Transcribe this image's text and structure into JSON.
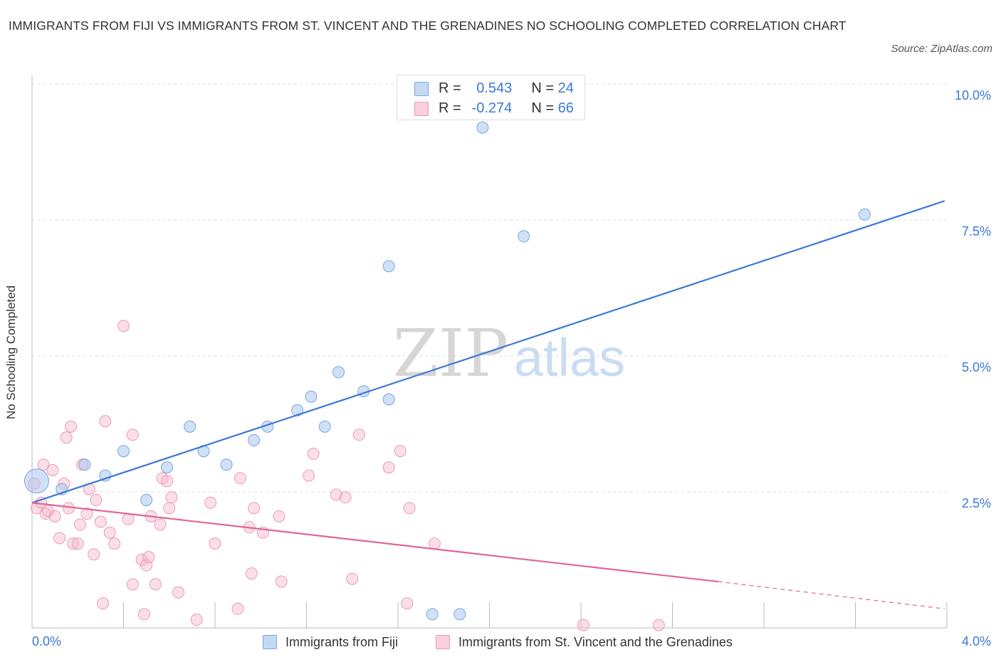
{
  "title": "IMMIGRANTS FROM FIJI VS IMMIGRANTS FROM ST. VINCENT AND THE GRENADINES NO SCHOOLING COMPLETED CORRELATION CHART",
  "source": "Source: ZipAtlas.com",
  "watermark": {
    "zip": "ZIP",
    "atlas": "atlas"
  },
  "legend_top": {
    "rows": [
      {
        "r_label": "R =",
        "r_value": "0.543",
        "n_label": "N =",
        "n_value": "24",
        "color": "#aac7f0"
      },
      {
        "r_label": "R =",
        "r_value": "-0.274",
        "n_label": "N =",
        "n_value": "66",
        "color": "#f5b7cb"
      }
    ]
  },
  "legend_bottom": [
    {
      "label": "Immigrants from Fiji",
      "color": "#aac7f0"
    },
    {
      "label": "Immigrants from St. Vincent and the Grenadines",
      "color": "#f5b7cb"
    }
  ],
  "chart_data": {
    "type": "scatter",
    "title": "IMMIGRANTS FROM FIJI VS IMMIGRANTS FROM ST. VINCENT AND THE GRENADINES NO SCHOOLING COMPLETED CORRELATION CHART",
    "xlabel": "",
    "ylabel": "No Schooling Completed",
    "xlim": [
      0,
      4.0
    ],
    "ylim": [
      0,
      10.0
    ],
    "x_tick_labels": [
      "0.0%",
      "4.0%"
    ],
    "y_ticks": [
      2.5,
      5.0,
      7.5,
      10.0
    ],
    "y_tick_labels": [
      "2.5%",
      "5.0%",
      "7.5%",
      "10.0%"
    ],
    "grid": true,
    "legend_position": "bottom",
    "series": [
      {
        "name": "Immigrants from Fiji",
        "color": "#3c78d8",
        "fill": "#aac7f0",
        "points": [
          [
            0.02,
            2.7
          ],
          [
            0.13,
            2.55
          ],
          [
            0.23,
            3.0
          ],
          [
            0.32,
            2.8
          ],
          [
            0.4,
            3.25
          ],
          [
            0.5,
            2.35
          ],
          [
            0.59,
            2.95
          ],
          [
            0.69,
            3.7
          ],
          [
            0.75,
            3.25
          ],
          [
            0.85,
            3.0
          ],
          [
            0.97,
            3.45
          ],
          [
            1.03,
            3.7
          ],
          [
            1.16,
            4.0
          ],
          [
            1.22,
            4.25
          ],
          [
            1.28,
            3.7
          ],
          [
            1.34,
            4.7
          ],
          [
            1.45,
            4.35
          ],
          [
            1.56,
            4.2
          ],
          [
            1.56,
            6.65
          ],
          [
            1.75,
            0.25
          ],
          [
            1.87,
            0.25
          ],
          [
            1.97,
            9.2
          ],
          [
            2.15,
            7.2
          ],
          [
            3.64,
            7.6
          ]
        ],
        "trendline": {
          "x": [
            0.0,
            3.99
          ],
          "y": [
            2.3,
            7.85
          ]
        }
      },
      {
        "name": "Immigrants from St. Vincent and the Grenadines",
        "color": "#e0659a",
        "fill": "#f5b7cb",
        "points": [
          [
            0.01,
            2.65
          ],
          [
            0.02,
            2.2
          ],
          [
            0.04,
            2.3
          ],
          [
            0.05,
            3.0
          ],
          [
            0.06,
            2.1
          ],
          [
            0.07,
            2.15
          ],
          [
            0.09,
            2.9
          ],
          [
            0.1,
            2.05
          ],
          [
            0.12,
            1.65
          ],
          [
            0.14,
            2.65
          ],
          [
            0.15,
            3.5
          ],
          [
            0.16,
            2.2
          ],
          [
            0.17,
            3.7
          ],
          [
            0.18,
            1.55
          ],
          [
            0.2,
            1.55
          ],
          [
            0.21,
            1.9
          ],
          [
            0.22,
            3.0
          ],
          [
            0.24,
            2.1
          ],
          [
            0.25,
            2.55
          ],
          [
            0.27,
            1.35
          ],
          [
            0.28,
            2.35
          ],
          [
            0.3,
            1.95
          ],
          [
            0.31,
            0.45
          ],
          [
            0.32,
            3.8
          ],
          [
            0.34,
            1.75
          ],
          [
            0.36,
            1.55
          ],
          [
            0.4,
            5.55
          ],
          [
            0.42,
            2.0
          ],
          [
            0.44,
            0.8
          ],
          [
            0.44,
            3.55
          ],
          [
            0.48,
            1.25
          ],
          [
            0.49,
            0.25
          ],
          [
            0.5,
            1.15
          ],
          [
            0.51,
            1.3
          ],
          [
            0.52,
            2.05
          ],
          [
            0.54,
            0.8
          ],
          [
            0.56,
            1.9
          ],
          [
            0.57,
            2.75
          ],
          [
            0.59,
            2.7
          ],
          [
            0.6,
            2.2
          ],
          [
            0.61,
            2.4
          ],
          [
            0.64,
            0.65
          ],
          [
            0.72,
            0.15
          ],
          [
            0.78,
            2.3
          ],
          [
            0.8,
            1.55
          ],
          [
            0.9,
            0.35
          ],
          [
            0.91,
            2.75
          ],
          [
            0.95,
            1.85
          ],
          [
            0.96,
            1.0
          ],
          [
            0.97,
            2.2
          ],
          [
            1.01,
            1.75
          ],
          [
            1.08,
            2.05
          ],
          [
            1.09,
            0.85
          ],
          [
            1.21,
            2.8
          ],
          [
            1.23,
            3.2
          ],
          [
            1.33,
            2.45
          ],
          [
            1.37,
            2.4
          ],
          [
            1.4,
            0.9
          ],
          [
            1.43,
            3.55
          ],
          [
            1.56,
            2.95
          ],
          [
            1.61,
            3.25
          ],
          [
            1.64,
            0.45
          ],
          [
            1.65,
            2.2
          ],
          [
            1.76,
            1.55
          ],
          [
            2.41,
            0.05
          ],
          [
            2.74,
            0.05
          ]
        ],
        "trendline": {
          "x": [
            0.0,
            3.0
          ],
          "y": [
            2.3,
            0.85
          ]
        },
        "trendline_extension": {
          "x": [
            3.0,
            3.99
          ],
          "y": [
            0.85,
            0.35
          ]
        }
      }
    ]
  }
}
